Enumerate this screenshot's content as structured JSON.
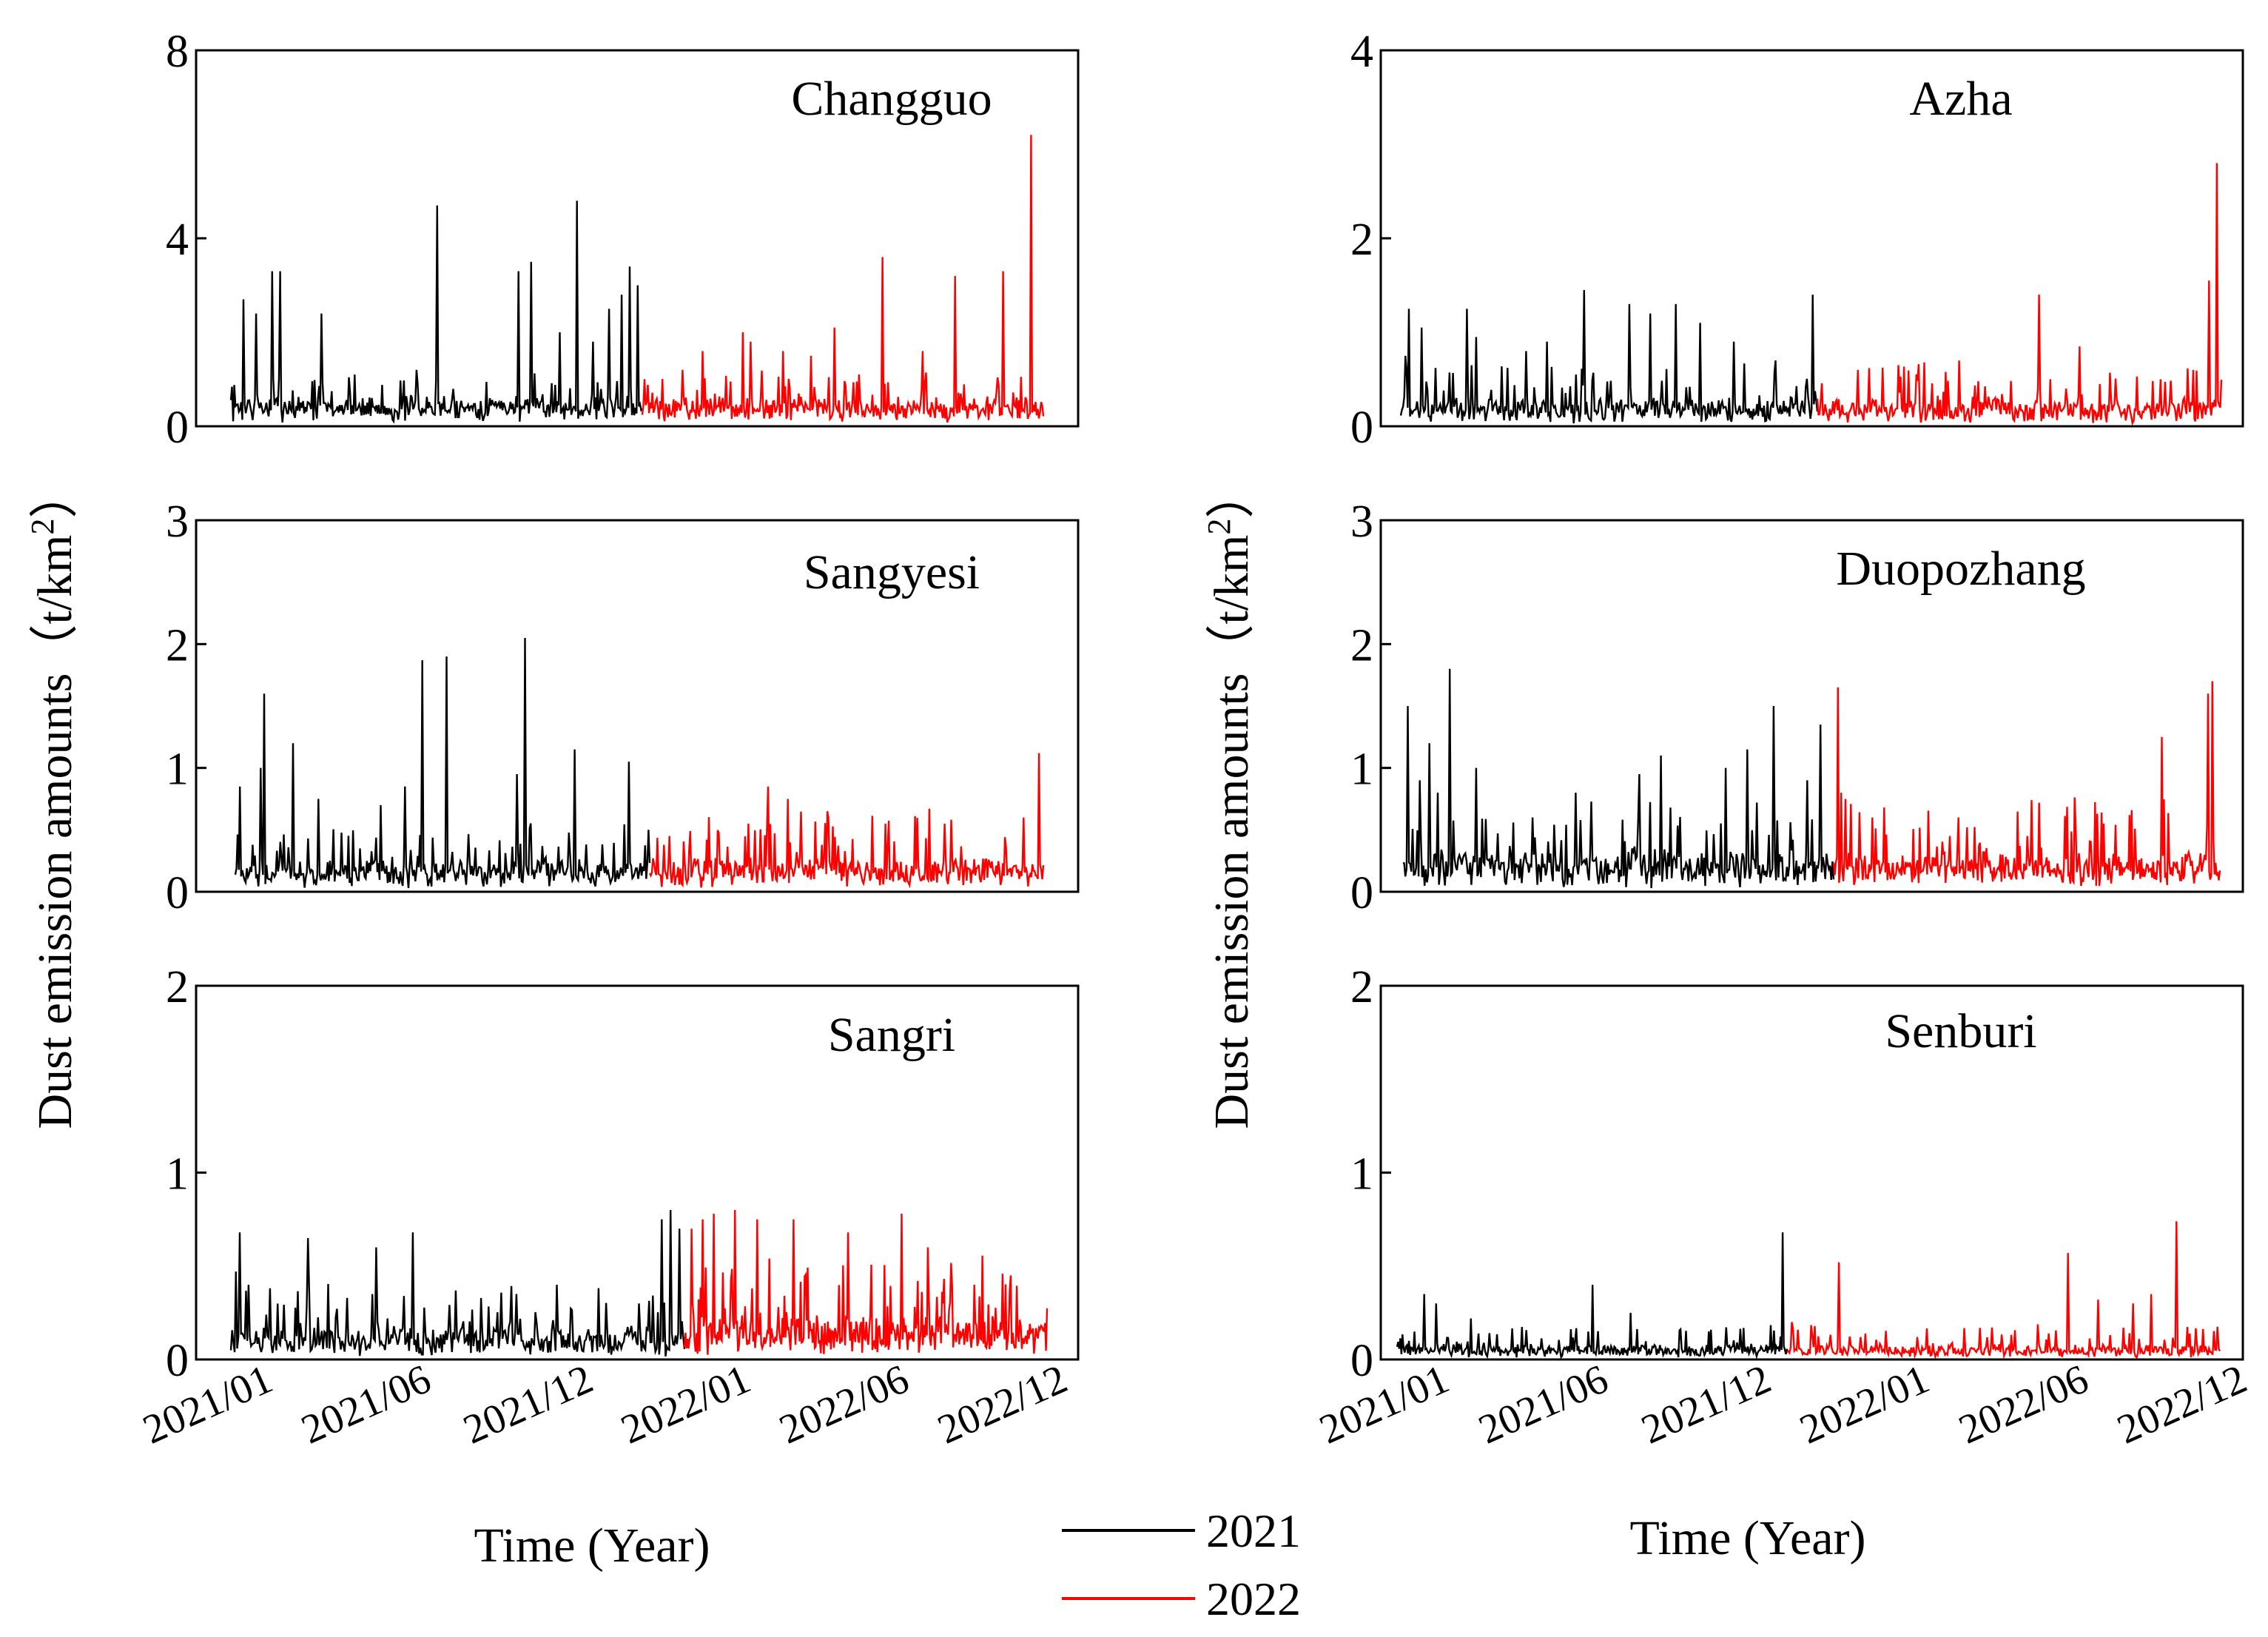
{
  "figure": {
    "left_ylabel_text": "Dust emission amounts",
    "left_ylabel_unit": "（t/km",
    "left_ylabel_sup": "2",
    "left_ylabel_close": "）",
    "right_ylabel_text": "Dust emission amounts",
    "right_ylabel_unit": "（t/km",
    "right_ylabel_sup": "2",
    "right_ylabel_close": "）",
    "left_xlabel": "Time (Year)",
    "right_xlabel": "Time (Year)",
    "legend": [
      {
        "label": "2021",
        "color": "#000000"
      },
      {
        "label": "2022",
        "color": "#ff0000"
      }
    ]
  },
  "chart_data": [
    {
      "type": "line",
      "title": "Changguo",
      "ylim": [
        0,
        8
      ],
      "yticks": [
        0,
        4,
        8
      ],
      "xtick_labels": [
        "2021/01",
        "2021/06",
        "2021/12",
        "2022/01",
        "2022/06",
        "2022/12"
      ],
      "xlabel": "Time (Year)",
      "ylabel": "Dust emission amounts (t/km2)",
      "series": [
        {
          "name": "2021",
          "color": "#000000",
          "base": 0.35,
          "noise": 0.55,
          "peaks": [
            [
              0.03,
              2.7
            ],
            [
              0.06,
              2.4
            ],
            [
              0.1,
              3.3
            ],
            [
              0.12,
              3.3
            ],
            [
              0.22,
              2.4
            ],
            [
              0.3,
              1.1
            ],
            [
              0.45,
              1.2
            ],
            [
              0.5,
              4.7
            ],
            [
              0.7,
              3.3
            ],
            [
              0.73,
              3.5
            ],
            [
              0.8,
              2.0
            ],
            [
              0.84,
              4.8
            ],
            [
              0.88,
              1.8
            ],
            [
              0.92,
              2.5
            ],
            [
              0.95,
              2.8
            ],
            [
              0.97,
              3.4
            ],
            [
              0.99,
              3.0
            ]
          ]
        },
        {
          "name": "2022",
          "color": "#ff0000",
          "base": 0.3,
          "noise": 0.6,
          "peaks": [
            [
              0.05,
              0.9
            ],
            [
              0.1,
              1.2
            ],
            [
              0.15,
              1.6
            ],
            [
              0.25,
              2.0
            ],
            [
              0.27,
              1.8
            ],
            [
              0.35,
              1.6
            ],
            [
              0.42,
              1.5
            ],
            [
              0.48,
              2.1
            ],
            [
              0.6,
              3.6
            ],
            [
              0.7,
              1.6
            ],
            [
              0.78,
              3.2
            ],
            [
              0.9,
              3.3
            ],
            [
              0.97,
              6.2
            ]
          ]
        }
      ]
    },
    {
      "type": "line",
      "title": "Azha",
      "ylim": [
        0,
        4
      ],
      "yticks": [
        0,
        2,
        4
      ],
      "xtick_labels": [
        "2021/01",
        "2021/06",
        "2021/12",
        "2022/01",
        "2022/06",
        "2022/12"
      ],
      "xlabel": "Time (Year)",
      "ylabel": "Dust emission amounts (t/km2)",
      "series": [
        {
          "name": "2021",
          "color": "#000000",
          "base": 0.12,
          "noise": 0.35,
          "peaks": [
            [
              0.01,
              0.75
            ],
            [
              0.02,
              1.25
            ],
            [
              0.05,
              1.05
            ],
            [
              0.16,
              1.25
            ],
            [
              0.18,
              0.95
            ],
            [
              0.3,
              0.8
            ],
            [
              0.35,
              0.9
            ],
            [
              0.44,
              1.45
            ],
            [
              0.55,
              1.3
            ],
            [
              0.6,
              1.2
            ],
            [
              0.66,
              1.3
            ],
            [
              0.72,
              1.1
            ],
            [
              0.8,
              0.9
            ],
            [
              0.9,
              0.7
            ],
            [
              0.99,
              1.4
            ]
          ]
        },
        {
          "name": "2022",
          "color": "#ff0000",
          "base": 0.12,
          "noise": 0.35,
          "peaks": [
            [
              0.1,
              0.6
            ],
            [
              0.2,
              0.65
            ],
            [
              0.35,
              0.7
            ],
            [
              0.55,
              1.4
            ],
            [
              0.65,
              0.85
            ],
            [
              0.85,
              0.5
            ],
            [
              0.93,
              0.6
            ],
            [
              0.97,
              1.55
            ],
            [
              0.99,
              2.8
            ]
          ]
        }
      ]
    },
    {
      "type": "line",
      "title": "Sangyesi",
      "ylim": [
        0,
        3
      ],
      "yticks": [
        0,
        1,
        2,
        3
      ],
      "xtick_labels": [
        "2021/01",
        "2021/06",
        "2021/12",
        "2022/01",
        "2022/06",
        "2022/12"
      ],
      "xlabel": "Time (Year)",
      "ylabel": "Dust emission amounts (t/km2)",
      "series": [
        {
          "name": "2021",
          "color": "#000000",
          "base": 0.1,
          "noise": 0.3,
          "peaks": [
            [
              0.01,
              0.85
            ],
            [
              0.06,
              1.0
            ],
            [
              0.07,
              1.6
            ],
            [
              0.14,
              1.2
            ],
            [
              0.2,
              0.75
            ],
            [
              0.35,
              0.7
            ],
            [
              0.41,
              0.85
            ],
            [
              0.45,
              1.87
            ],
            [
              0.51,
              1.9
            ],
            [
              0.68,
              0.95
            ],
            [
              0.7,
              2.05
            ],
            [
              0.82,
              1.15
            ],
            [
              0.95,
              1.05
            ]
          ]
        },
        {
          "name": "2022",
          "color": "#ff0000",
          "base": 0.1,
          "noise": 0.35,
          "peaks": [
            [
              0.05,
              0.45
            ],
            [
              0.15,
              0.5
            ],
            [
              0.25,
              0.55
            ],
            [
              0.3,
              0.85
            ],
            [
              0.35,
              0.75
            ],
            [
              0.45,
              0.65
            ],
            [
              0.6,
              0.55
            ],
            [
              0.75,
              0.55
            ],
            [
              0.95,
              0.6
            ],
            [
              0.99,
              1.12
            ]
          ]
        }
      ]
    },
    {
      "type": "line",
      "title": "Duopozhang",
      "ylim": [
        0,
        3
      ],
      "yticks": [
        0,
        1,
        2,
        3
      ],
      "xtick_labels": [
        "2021/01",
        "2021/06",
        "2021/12",
        "2022/01",
        "2022/06",
        "2022/12"
      ],
      "xlabel": "Time (Year)",
      "ylabel": "Dust emission amounts (t/km2)",
      "series": [
        {
          "name": "2021",
          "color": "#000000",
          "base": 0.12,
          "noise": 0.4,
          "peaks": [
            [
              0.01,
              1.5
            ],
            [
              0.04,
              0.9
            ],
            [
              0.06,
              1.2
            ],
            [
              0.08,
              0.8
            ],
            [
              0.11,
              1.8
            ],
            [
              0.17,
              1.0
            ],
            [
              0.3,
              0.6
            ],
            [
              0.4,
              0.8
            ],
            [
              0.55,
              0.95
            ],
            [
              0.6,
              1.1
            ],
            [
              0.75,
              1.0
            ],
            [
              0.8,
              1.15
            ],
            [
              0.86,
              1.5
            ],
            [
              0.94,
              0.9
            ],
            [
              0.97,
              1.35
            ]
          ]
        },
        {
          "name": "2022",
          "color": "#ff0000",
          "base": 0.12,
          "noise": 0.4,
          "peaks": [
            [
              0.01,
              1.65
            ],
            [
              0.02,
              0.8
            ],
            [
              0.03,
              0.75
            ],
            [
              0.1,
              0.6
            ],
            [
              0.3,
              0.45
            ],
            [
              0.5,
              0.45
            ],
            [
              0.7,
              0.55
            ],
            [
              0.85,
              1.25
            ],
            [
              0.97,
              1.6
            ],
            [
              0.98,
              1.7
            ]
          ]
        }
      ]
    },
    {
      "type": "line",
      "title": "Sangri",
      "ylim": [
        0,
        2
      ],
      "yticks": [
        0,
        1,
        2
      ],
      "xtick_labels": [
        "2021/01",
        "2021/06",
        "2021/12",
        "2022/01",
        "2022/06",
        "2022/12"
      ],
      "xlabel": "Time (Year)",
      "ylabel": "Dust emission amounts (t/km2)",
      "series": [
        {
          "name": "2021",
          "color": "#000000",
          "base": 0.06,
          "noise": 0.22,
          "peaks": [
            [
              0.01,
              0.47
            ],
            [
              0.02,
              0.68
            ],
            [
              0.04,
              0.4
            ],
            [
              0.17,
              0.65
            ],
            [
              0.32,
              0.6
            ],
            [
              0.4,
              0.68
            ],
            [
              0.63,
              0.35
            ],
            [
              0.72,
              0.4
            ],
            [
              0.9,
              0.3
            ],
            [
              0.95,
              0.75
            ],
            [
              0.97,
              0.8
            ],
            [
              0.99,
              0.7
            ]
          ]
        },
        {
          "name": "2022",
          "color": "#ff0000",
          "base": 0.08,
          "noise": 0.3,
          "peaks": [
            [
              0.02,
              0.7
            ],
            [
              0.05,
              0.75
            ],
            [
              0.08,
              0.78
            ],
            [
              0.14,
              0.8
            ],
            [
              0.2,
              0.75
            ],
            [
              0.3,
              0.75
            ],
            [
              0.45,
              0.68
            ],
            [
              0.6,
              0.78
            ],
            [
              0.67,
              0.6
            ],
            [
              0.8,
              0.4
            ],
            [
              0.9,
              0.45
            ]
          ]
        }
      ]
    },
    {
      "type": "line",
      "title": "Senburi",
      "ylim": [
        0,
        2
      ],
      "yticks": [
        0,
        1,
        2
      ],
      "xtick_labels": [
        "2021/01",
        "2021/06",
        "2021/12",
        "2022/01",
        "2022/06",
        "2022/12"
      ],
      "xlabel": "Time (Year)",
      "ylabel": "Dust emission amounts (t/km2)",
      "series": [
        {
          "name": "2021",
          "color": "#000000",
          "base": 0.03,
          "noise": 0.1,
          "peaks": [
            [
              0.03,
              0.1
            ],
            [
              0.07,
              0.35
            ],
            [
              0.1,
              0.3
            ],
            [
              0.19,
              0.22
            ],
            [
              0.5,
              0.4
            ],
            [
              0.6,
              0.25
            ],
            [
              0.8,
              0.15
            ],
            [
              0.99,
              0.68
            ]
          ]
        },
        {
          "name": "2022",
          "color": "#ff0000",
          "base": 0.03,
          "noise": 0.1,
          "peaks": [
            [
              0.01,
              0.2
            ],
            [
              0.12,
              0.52
            ],
            [
              0.3,
              0.12
            ],
            [
              0.65,
              0.57
            ],
            [
              0.72,
              0.32
            ],
            [
              0.8,
              0.3
            ],
            [
              0.84,
              0.35
            ],
            [
              0.9,
              0.74
            ]
          ]
        }
      ]
    }
  ]
}
